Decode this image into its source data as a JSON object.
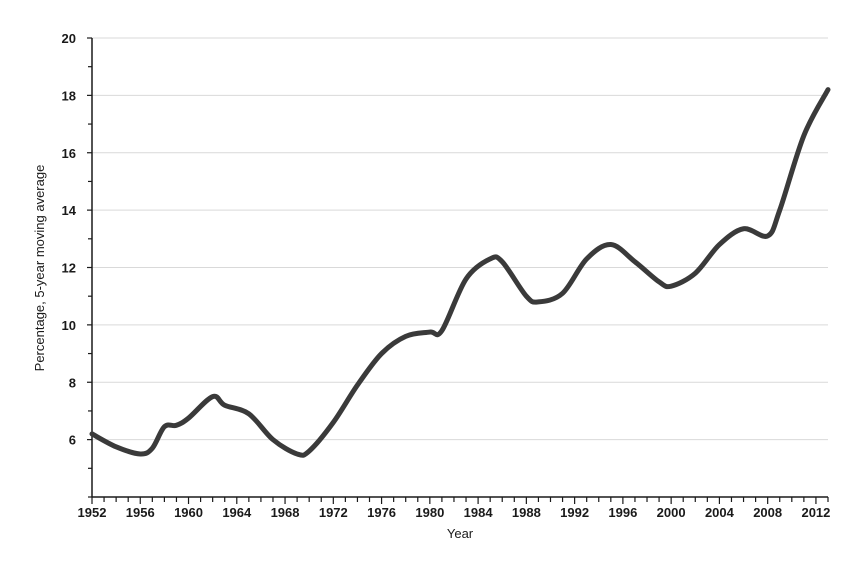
{
  "chart_data": {
    "type": "line",
    "xlabel": "Year",
    "ylabel": "Percentage, 5-year moving average",
    "xlim": [
      1952,
      2013
    ],
    "ylim": [
      4,
      20
    ],
    "x_ticks": [
      1952,
      1956,
      1960,
      1964,
      1968,
      1972,
      1976,
      1980,
      1984,
      1988,
      1992,
      1996,
      2000,
      2004,
      2008,
      2012
    ],
    "y_ticks": [
      6,
      8,
      10,
      12,
      14,
      16,
      18,
      20
    ],
    "grid": true,
    "series": [
      {
        "color": "#3a3a3a",
        "x": [
          1952,
          1954,
          1956,
          1957,
          1958,
          1959,
          1960,
          1962,
          1963,
          1965,
          1967,
          1969,
          1970,
          1972,
          1974,
          1976,
          1978,
          1980,
          1981,
          1983,
          1985,
          1986,
          1988,
          1989,
          1991,
          1993,
          1995,
          1997,
          1999,
          2000,
          2002,
          2004,
          2006,
          2008,
          2009,
          2011,
          2013
        ],
        "values": [
          6.2,
          5.75,
          5.5,
          5.7,
          6.45,
          6.5,
          6.75,
          7.5,
          7.2,
          6.9,
          6.0,
          5.5,
          5.6,
          6.6,
          7.9,
          9.0,
          9.6,
          9.75,
          9.8,
          11.6,
          12.3,
          12.2,
          11.0,
          10.8,
          11.1,
          12.3,
          12.8,
          12.2,
          11.5,
          11.35,
          11.8,
          12.8,
          13.35,
          13.1,
          14.0,
          16.6,
          18.2
        ]
      }
    ]
  }
}
